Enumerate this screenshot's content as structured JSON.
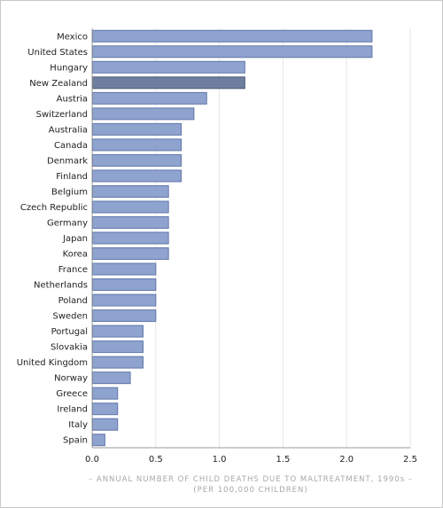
{
  "chart_data": {
    "type": "bar",
    "orientation": "horizontal",
    "categories": [
      "Mexico",
      "United States",
      "Hungary",
      "New Zealand",
      "Austria",
      "Switzerland",
      "Australia",
      "Canada",
      "Denmark",
      "Finland",
      "Belgium",
      "Czech Republic",
      "Germany",
      "Japan",
      "Korea",
      "France",
      "Netherlands",
      "Poland",
      "Sweden",
      "Portugal",
      "Slovakia",
      "United Kingdom",
      "Norway",
      "Greece",
      "Ireland",
      "Italy",
      "Spain"
    ],
    "values": [
      2.2,
      2.2,
      1.2,
      1.2,
      0.9,
      0.8,
      0.7,
      0.7,
      0.7,
      0.7,
      0.6,
      0.6,
      0.6,
      0.6,
      0.6,
      0.5,
      0.5,
      0.5,
      0.5,
      0.4,
      0.4,
      0.4,
      0.3,
      0.2,
      0.2,
      0.2,
      0.1
    ],
    "highlight": "New Zealand",
    "xlim": [
      0,
      2.5
    ],
    "xticks": [
      "0.0",
      "0.5",
      "1.0",
      "1.5",
      "2.0",
      "2.5"
    ],
    "xlabel_line1": "– ANNUAL NUMBER OF CHILD DEATHS DUE TO MALTREATMENT, 1990s –",
    "xlabel_line2": "(PER 100,000 CHILDREN)",
    "title": "",
    "grid": "vertical",
    "colors": {
      "bar": "#8fa3cf",
      "bar_border": "#5f76aa",
      "highlight": "#6d7e9e",
      "highlight_border": "#4d5a75",
      "grid": "#e6e6e6",
      "axis": "#999999"
    }
  }
}
